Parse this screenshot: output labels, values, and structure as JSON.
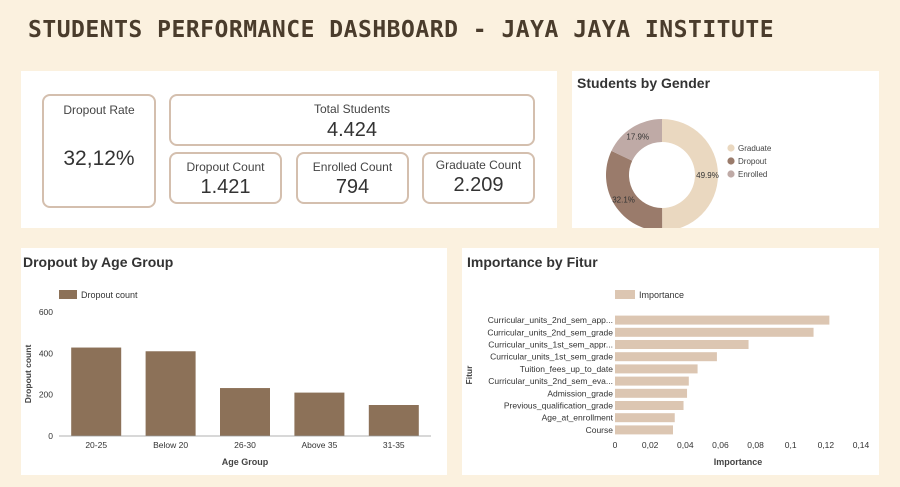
{
  "header": {
    "title": "STUDENTS PERFORMANCE DASHBOARD - JAYA JAYA INSTITUTE"
  },
  "kpis": {
    "dropout_rate": {
      "label": "Dropout Rate",
      "value": "32,12%"
    },
    "total_students": {
      "label": "Total Students",
      "value": "4.424"
    },
    "dropout_count": {
      "label": "Dropout Count",
      "value": "1.421"
    },
    "enrolled_count": {
      "label": "Enrolled Count",
      "value": "794"
    },
    "graduate_count": {
      "label": "Graduate Count",
      "value": "2.209"
    }
  },
  "colors": {
    "graduate": "#ead8c0",
    "dropout": "#9a7b6b",
    "enrolled": "#bfaaa6",
    "bar": "#8c7158",
    "hbar": "#dcc6b2"
  },
  "chart_data": [
    {
      "type": "pie",
      "title": "Students by Gender",
      "labels": [
        "Graduate",
        "Dropout",
        "Enrolled"
      ],
      "values": [
        49.9,
        32.1,
        17.9
      ],
      "value_labels": [
        "49.9%",
        "32.1%",
        "17.9%"
      ],
      "legend": "right"
    },
    {
      "type": "bar",
      "title": "Dropout by Age Group",
      "legend_entry": "Dropout count",
      "categories": [
        "20-25",
        "Below 20",
        "26-30",
        "Above 35",
        "31-35"
      ],
      "values": [
        428,
        410,
        232,
        210,
        150
      ],
      "xlabel": "Age Group",
      "ylabel": "Dropout count",
      "ylim": [
        0,
        600
      ],
      "yticks": [
        0,
        200,
        400,
        600
      ],
      "ytick_labels": [
        "0",
        "200",
        "400",
        "600"
      ],
      "legend": "top-left"
    },
    {
      "type": "bar",
      "orientation": "horizontal",
      "title": "Importance by Fitur",
      "legend_entry": "Importance",
      "categories": [
        "Curricular_units_2nd_sem_app...",
        "Curricular_units_2nd_sem_grade",
        "Curricular_units_1st_sem_appr...",
        "Curricular_units_1st_sem_grade",
        "Tuition_fees_up_to_date",
        "Curricular_units_2nd_sem_eva...",
        "Admission_grade",
        "Previous_qualification_grade",
        "Age_at_enrollment",
        "Course"
      ],
      "values": [
        0.122,
        0.113,
        0.076,
        0.058,
        0.047,
        0.042,
        0.041,
        0.039,
        0.034,
        0.033
      ],
      "xlabel": "Importance",
      "ylabel": "Fitur",
      "xlim": [
        0,
        0.14
      ],
      "xticks": [
        0,
        0.02,
        0.04,
        0.06,
        0.08,
        0.1,
        0.12,
        0.14
      ],
      "xtick_labels": [
        "0",
        "0,02",
        "0,04",
        "0,06",
        "0,08",
        "0,1",
        "0,12",
        "0,14"
      ],
      "legend": "top-center"
    }
  ]
}
